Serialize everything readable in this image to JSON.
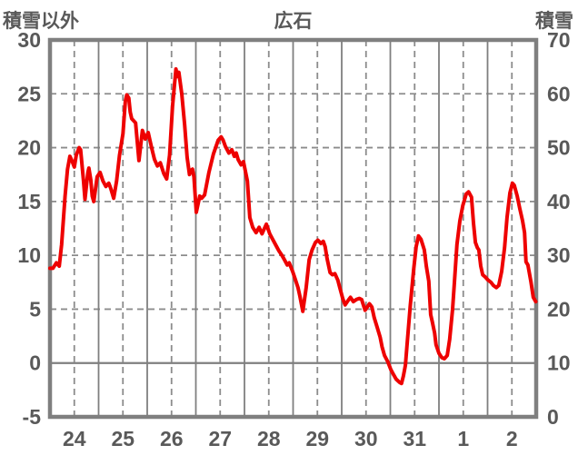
{
  "header": {
    "left_axis_label": "積雪以外",
    "title": "広石",
    "right_axis_label": "積雪"
  },
  "colors": {
    "line": "#ee0000",
    "axis_border": "#7f7f7f",
    "grid_solid": "#7f7f7f",
    "grid_dashed": "#8c8c8c",
    "text": "#595959",
    "background": "#ffffff"
  },
  "chart_data": {
    "type": "line",
    "title": "広石",
    "legend_position": "none",
    "grid": "on",
    "x_axis": {
      "tick_labels": [
        "24",
        "25",
        "26",
        "27",
        "28",
        "29",
        "30",
        "31",
        "1",
        "2"
      ],
      "num_days": 10,
      "solid_gridlines_at": "day boundaries",
      "dashed_gridlines_at": "half-day marks"
    },
    "left_axis": {
      "label": "積雪以外",
      "min": -5,
      "max": 30,
      "tick_step": 5,
      "tick_labels": [
        "30",
        "25",
        "20",
        "15",
        "10",
        "5",
        "0",
        "-5"
      ],
      "zero_line": "solid"
    },
    "right_axis": {
      "label": "積雪",
      "min": 0,
      "max": 70,
      "tick_step": 10,
      "tick_labels": [
        "70",
        "60",
        "50",
        "40",
        "30",
        "20",
        "10",
        "0"
      ]
    },
    "series": [
      {
        "name": "積雪以外",
        "axis": "left",
        "color": "#ee0000",
        "x_unit": "days from start of 24th (0-10)",
        "points": [
          [
            0.0,
            8.8
          ],
          [
            0.06,
            8.8
          ],
          [
            0.13,
            9.3
          ],
          [
            0.19,
            9.0
          ],
          [
            0.24,
            11.0
          ],
          [
            0.31,
            15.5
          ],
          [
            0.36,
            18.0
          ],
          [
            0.41,
            19.2
          ],
          [
            0.45,
            18.8
          ],
          [
            0.5,
            18.2
          ],
          [
            0.54,
            19.3
          ],
          [
            0.6,
            20.0
          ],
          [
            0.63,
            19.8
          ],
          [
            0.69,
            16.9
          ],
          [
            0.72,
            15.2
          ],
          [
            0.78,
            17.7
          ],
          [
            0.8,
            18.1
          ],
          [
            0.84,
            17.0
          ],
          [
            0.87,
            15.5
          ],
          [
            0.9,
            15.0
          ],
          [
            0.97,
            17.3
          ],
          [
            1.03,
            17.7
          ],
          [
            1.09,
            16.9
          ],
          [
            1.15,
            16.4
          ],
          [
            1.21,
            16.7
          ],
          [
            1.25,
            16.2
          ],
          [
            1.31,
            15.3
          ],
          [
            1.37,
            16.9
          ],
          [
            1.43,
            19.3
          ],
          [
            1.5,
            21.3
          ],
          [
            1.55,
            24.3
          ],
          [
            1.58,
            24.9
          ],
          [
            1.62,
            24.6
          ],
          [
            1.65,
            23.3
          ],
          [
            1.68,
            22.7
          ],
          [
            1.76,
            22.3
          ],
          [
            1.83,
            18.8
          ],
          [
            1.9,
            21.6
          ],
          [
            1.96,
            20.8
          ],
          [
            2.02,
            21.4
          ],
          [
            2.09,
            20.0
          ],
          [
            2.15,
            18.9
          ],
          [
            2.21,
            18.3
          ],
          [
            2.27,
            18.6
          ],
          [
            2.34,
            17.6
          ],
          [
            2.4,
            17.1
          ],
          [
            2.46,
            19.3
          ],
          [
            2.52,
            23.8
          ],
          [
            2.59,
            27.3
          ],
          [
            2.62,
            26.6
          ],
          [
            2.65,
            27.0
          ],
          [
            2.71,
            25.0
          ],
          [
            2.77,
            22.1
          ],
          [
            2.82,
            19.1
          ],
          [
            2.87,
            17.5
          ],
          [
            2.9,
            17.9
          ],
          [
            2.93,
            18.0
          ],
          [
            2.96,
            17.3
          ],
          [
            3.01,
            14.0
          ],
          [
            3.08,
            15.5
          ],
          [
            3.12,
            15.3
          ],
          [
            3.18,
            15.6
          ],
          [
            3.27,
            17.7
          ],
          [
            3.36,
            19.4
          ],
          [
            3.46,
            20.7
          ],
          [
            3.52,
            21.0
          ],
          [
            3.56,
            20.7
          ],
          [
            3.61,
            20.1
          ],
          [
            3.68,
            19.5
          ],
          [
            3.74,
            19.8
          ],
          [
            3.79,
            19.2
          ],
          [
            3.83,
            19.5
          ],
          [
            3.87,
            18.9
          ],
          [
            3.93,
            18.4
          ],
          [
            3.98,
            18.7
          ],
          [
            4.06,
            16.9
          ],
          [
            4.11,
            13.5
          ],
          [
            4.17,
            12.6
          ],
          [
            4.24,
            12.1
          ],
          [
            4.3,
            12.6
          ],
          [
            4.36,
            12.0
          ],
          [
            4.45,
            12.9
          ],
          [
            4.52,
            12.0
          ],
          [
            4.58,
            11.5
          ],
          [
            4.65,
            10.9
          ],
          [
            4.71,
            10.4
          ],
          [
            4.77,
            10.0
          ],
          [
            4.82,
            9.6
          ],
          [
            4.88,
            9.1
          ],
          [
            4.92,
            9.3
          ],
          [
            4.99,
            8.5
          ],
          [
            5.05,
            7.7
          ],
          [
            5.1,
            7.0
          ],
          [
            5.14,
            6.2
          ],
          [
            5.2,
            4.8
          ],
          [
            5.27,
            7.0
          ],
          [
            5.33,
            9.6
          ],
          [
            5.39,
            10.5
          ],
          [
            5.46,
            11.2
          ],
          [
            5.51,
            11.4
          ],
          [
            5.57,
            11.1
          ],
          [
            5.62,
            11.3
          ],
          [
            5.66,
            10.8
          ],
          [
            5.7,
            9.7
          ],
          [
            5.76,
            8.4
          ],
          [
            5.81,
            8.2
          ],
          [
            5.86,
            8.3
          ],
          [
            5.92,
            7.7
          ],
          [
            5.96,
            7.0
          ],
          [
            6.02,
            6.0
          ],
          [
            6.07,
            5.4
          ],
          [
            6.13,
            5.8
          ],
          [
            6.18,
            6.1
          ],
          [
            6.24,
            5.7
          ],
          [
            6.3,
            5.9
          ],
          [
            6.36,
            6.0
          ],
          [
            6.41,
            5.9
          ],
          [
            6.48,
            4.9
          ],
          [
            6.54,
            5.3
          ],
          [
            6.57,
            5.5
          ],
          [
            6.62,
            5.2
          ],
          [
            6.67,
            4.2
          ],
          [
            6.73,
            3.3
          ],
          [
            6.79,
            2.4
          ],
          [
            6.83,
            1.5
          ],
          [
            6.88,
            0.7
          ],
          [
            6.95,
            0.1
          ],
          [
            7.01,
            -0.6
          ],
          [
            7.07,
            -1.1
          ],
          [
            7.12,
            -1.5
          ],
          [
            7.19,
            -1.8
          ],
          [
            7.23,
            -1.9
          ],
          [
            7.27,
            -1.2
          ],
          [
            7.31,
            -0.2
          ],
          [
            7.35,
            2.0
          ],
          [
            7.41,
            5.3
          ],
          [
            7.48,
            8.7
          ],
          [
            7.53,
            10.8
          ],
          [
            7.58,
            11.8
          ],
          [
            7.63,
            11.5
          ],
          [
            7.7,
            10.5
          ],
          [
            7.74,
            9.0
          ],
          [
            7.79,
            7.6
          ],
          [
            7.83,
            4.5
          ],
          [
            7.86,
            3.9
          ],
          [
            7.91,
            2.8
          ],
          [
            7.94,
            1.7
          ],
          [
            8.0,
            0.9
          ],
          [
            8.06,
            0.5
          ],
          [
            8.11,
            0.4
          ],
          [
            8.17,
            0.7
          ],
          [
            8.22,
            2.2
          ],
          [
            8.28,
            5.0
          ],
          [
            8.32,
            7.6
          ],
          [
            8.37,
            11.0
          ],
          [
            8.43,
            13.2
          ],
          [
            8.49,
            14.6
          ],
          [
            8.56,
            15.7
          ],
          [
            8.61,
            15.9
          ],
          [
            8.67,
            15.4
          ],
          [
            8.71,
            13.0
          ],
          [
            8.75,
            11.2
          ],
          [
            8.79,
            10.7
          ],
          [
            8.82,
            10.5
          ],
          [
            8.86,
            9.0
          ],
          [
            8.9,
            8.2
          ],
          [
            8.95,
            8.0
          ],
          [
            9.01,
            7.7
          ],
          [
            9.07,
            7.5
          ],
          [
            9.12,
            7.2
          ],
          [
            9.18,
            7.0
          ],
          [
            9.23,
            7.2
          ],
          [
            9.29,
            8.5
          ],
          [
            9.35,
            10.7
          ],
          [
            9.4,
            13.5
          ],
          [
            9.46,
            15.8
          ],
          [
            9.51,
            16.7
          ],
          [
            9.55,
            16.5
          ],
          [
            9.61,
            15.5
          ],
          [
            9.66,
            14.4
          ],
          [
            9.72,
            13.2
          ],
          [
            9.76,
            12.1
          ],
          [
            9.79,
            9.4
          ],
          [
            9.83,
            9.1
          ],
          [
            9.89,
            7.6
          ],
          [
            9.94,
            6.1
          ],
          [
            9.99,
            5.7
          ]
        ]
      }
    ]
  }
}
